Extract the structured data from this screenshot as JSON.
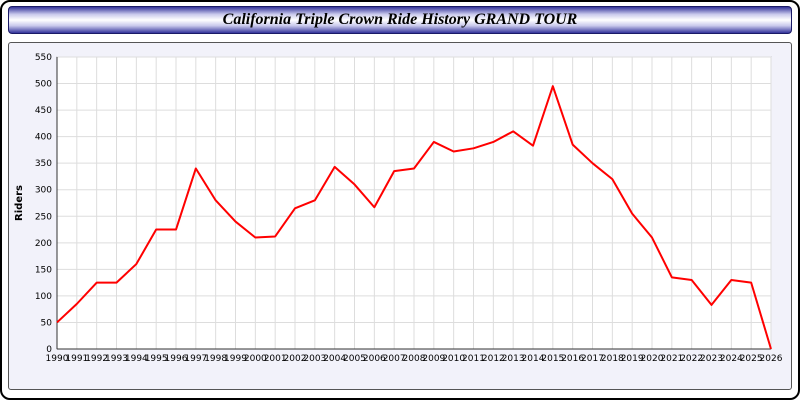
{
  "header": {
    "title": "California Triple Crown Ride History GRAND TOUR"
  },
  "chart_data": {
    "type": "line",
    "title": "California Triple Crown Ride History GRAND TOUR",
    "xlabel": "",
    "ylabel": "Riders",
    "ylim": [
      0,
      550
    ],
    "ytick_step": 50,
    "grid": true,
    "legend": "none",
    "line_color": "#ff0000",
    "x": [
      1990,
      1991,
      1992,
      1993,
      1994,
      1995,
      1996,
      1997,
      1998,
      1999,
      2000,
      2001,
      2002,
      2003,
      2004,
      2005,
      2006,
      2007,
      2008,
      2009,
      2010,
      2011,
      2012,
      2013,
      2014,
      2015,
      2016,
      2017,
      2018,
      2019,
      2020,
      2021,
      2022,
      2023,
      2024,
      2025,
      2026
    ],
    "values": [
      50,
      85,
      125,
      125,
      160,
      225,
      225,
      340,
      280,
      240,
      210,
      212,
      265,
      280,
      343,
      310,
      267,
      335,
      340,
      390,
      372,
      378,
      390,
      410,
      383,
      495,
      385,
      350,
      320,
      255,
      210,
      135,
      130,
      83,
      130,
      125,
      0
    ]
  }
}
